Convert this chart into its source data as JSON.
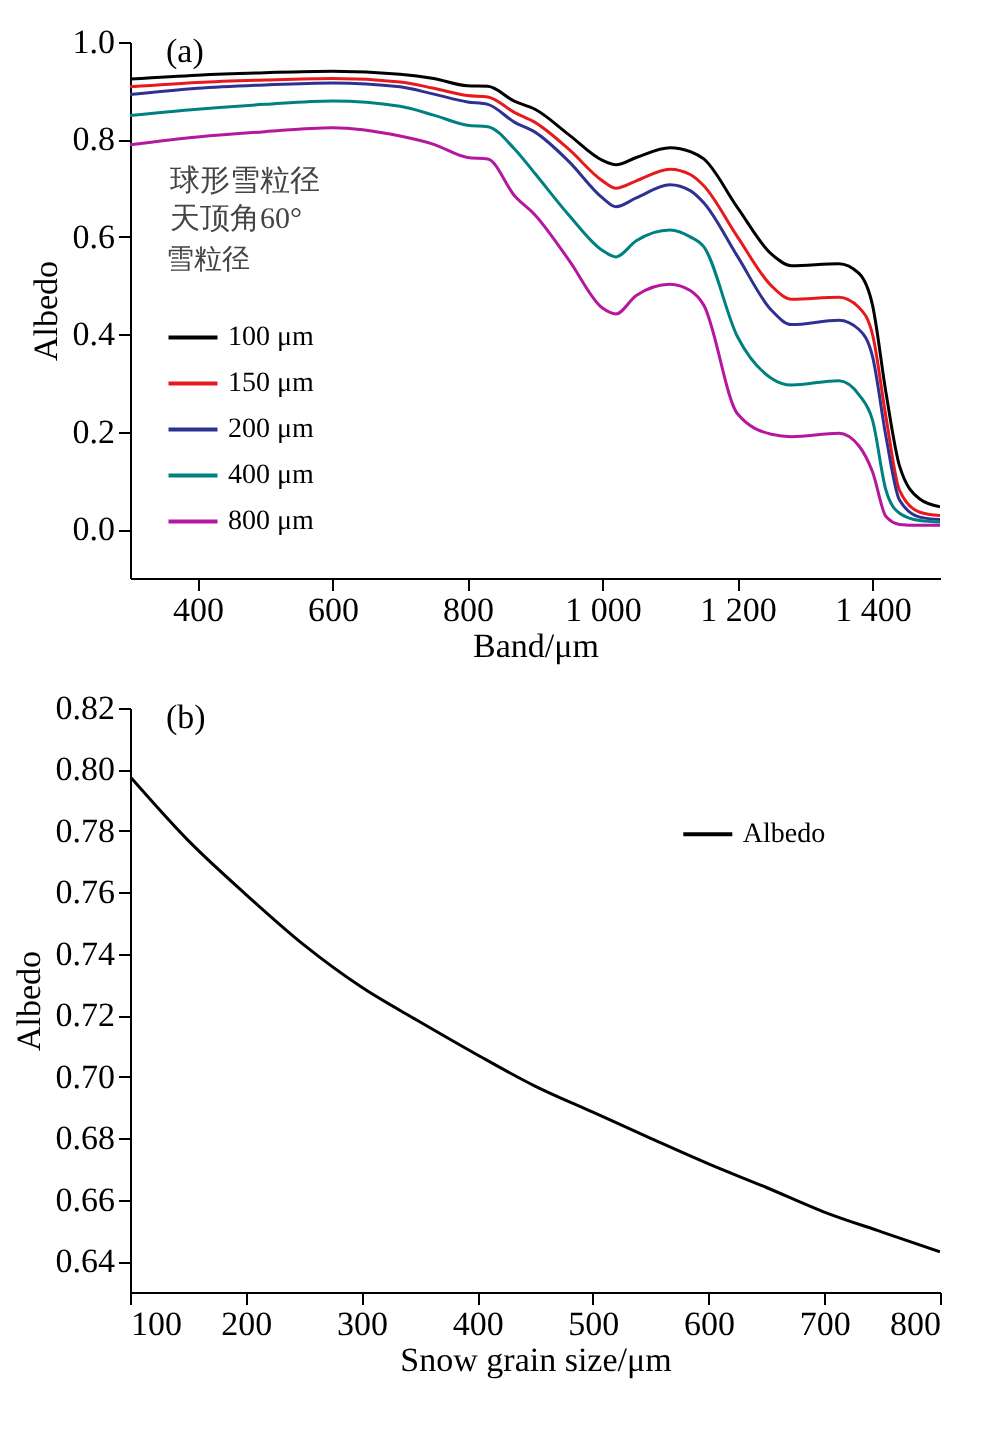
{
  "chart_data": [
    {
      "type": "line",
      "annotations": [
        "(a)",
        "球形雪粒径",
        "天顶角60°"
      ],
      "xlabel": "Band/μm",
      "ylabel": "Albedo",
      "legend_title": "雪粒径",
      "legend": "left",
      "grid": false,
      "x": [
        300,
        400,
        500,
        600,
        700,
        750,
        800,
        830,
        870,
        900,
        950,
        1000,
        1020,
        1050,
        1100,
        1130,
        1150,
        1200,
        1250,
        1280,
        1350,
        1380,
        1400,
        1420,
        1440,
        1470,
        1500
      ],
      "xlim": [
        300,
        1500
      ],
      "xticks": [
        400,
        600,
        800,
        {
          "value": 1000,
          "label": "1 000"
        },
        {
          "value": 1200,
          "label": "1 200"
        },
        {
          "value": 1400,
          "label": "1 400"
        }
      ],
      "ylim": [
        -0.1,
        1.0
      ],
      "yticks": [
        {
          "value": 0.0,
          "label": "0.0"
        },
        0.2,
        0.4,
        0.6,
        0.8,
        {
          "value": 1.0,
          "label": "1.0"
        }
      ],
      "series": [
        {
          "name": "100 μm",
          "color": "#000000",
          "values": [
            0.924,
            0.932,
            0.937,
            0.94,
            0.934,
            0.925,
            0.91,
            0.909,
            0.878,
            0.862,
            0.81,
            0.757,
            0.748,
            0.763,
            0.783,
            0.775,
            0.76,
            0.66,
            0.565,
            0.541,
            0.545,
            0.525,
            0.46,
            0.28,
            0.13,
            0.062,
            0.046
          ]
        },
        {
          "name": "150 μm",
          "color": "#e8191c",
          "values": [
            0.908,
            0.917,
            0.922,
            0.925,
            0.918,
            0.905,
            0.89,
            0.887,
            0.855,
            0.835,
            0.78,
            0.715,
            0.7,
            0.715,
            0.739,
            0.728,
            0.705,
            0.6,
            0.5,
            0.472,
            0.476,
            0.455,
            0.4,
            0.23,
            0.08,
            0.035,
            0.028
          ]
        },
        {
          "name": "200 μm",
          "color": "#2e3192",
          "values": [
            0.892,
            0.905,
            0.912,
            0.916,
            0.908,
            0.893,
            0.877,
            0.872,
            0.835,
            0.815,
            0.755,
            0.68,
            0.662,
            0.68,
            0.707,
            0.695,
            0.67,
            0.56,
            0.45,
            0.42,
            0.429,
            0.41,
            0.355,
            0.19,
            0.06,
            0.025,
            0.02
          ]
        },
        {
          "name": "400 μm",
          "color": "#008080",
          "values": [
            0.849,
            0.862,
            0.872,
            0.879,
            0.868,
            0.85,
            0.829,
            0.826,
            0.78,
            0.73,
            0.645,
            0.572,
            0.559,
            0.592,
            0.614,
            0.6,
            0.58,
            0.395,
            0.31,
            0.296,
            0.305,
            0.276,
            0.224,
            0.08,
            0.033,
            0.018,
            0.015
          ]
        },
        {
          "name": "800 μm",
          "color": "#b5179e",
          "values": [
            0.789,
            0.805,
            0.816,
            0.824,
            0.807,
            0.79,
            0.763,
            0.76,
            0.684,
            0.645,
            0.553,
            0.454,
            0.442,
            0.48,
            0.503,
            0.49,
            0.46,
            0.237,
            0.195,
            0.19,
            0.197,
            0.171,
            0.118,
            0.026,
            0.01,
            0.008,
            0.008
          ]
        }
      ]
    },
    {
      "type": "line",
      "annotations": [
        "(b)"
      ],
      "xlabel": "Snow grain size/μm",
      "ylabel": "Albedo",
      "legend": "top right",
      "grid": false,
      "x": [
        100,
        150,
        200,
        250,
        300,
        350,
        400,
        450,
        500,
        550,
        600,
        650,
        700,
        750,
        800
      ],
      "xlim": [
        100,
        800
      ],
      "xticks": [
        100,
        200,
        300,
        400,
        500,
        600,
        700,
        800
      ],
      "ylim": [
        0.63,
        0.82
      ],
      "yticks": [
        0.64,
        0.66,
        0.68,
        {
          "value": 0.7,
          "label": "0.70"
        },
        0.72,
        0.74,
        0.76,
        0.78,
        {
          "value": 0.8,
          "label": "0.80"
        },
        0.82
      ],
      "series": [
        {
          "name": "Albedo",
          "color": "#000000",
          "values": [
            0.7977,
            0.777,
            0.7594,
            0.743,
            0.7292,
            0.718,
            0.7072,
            0.697,
            0.6885,
            0.68,
            0.6717,
            0.664,
            0.656,
            0.6495,
            0.6431
          ]
        }
      ]
    }
  ]
}
